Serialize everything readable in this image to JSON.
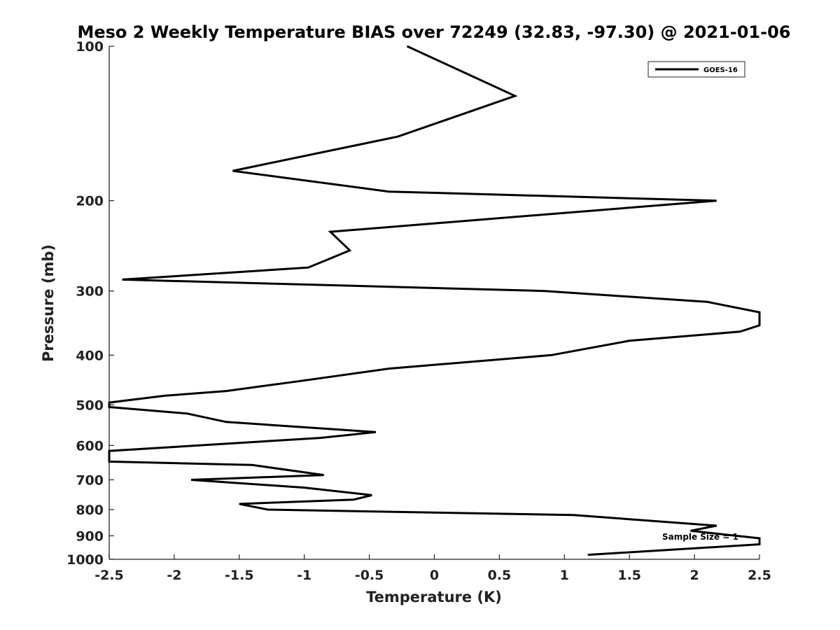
{
  "chart_data": {
    "type": "line",
    "title": "Meso 2 Weekly Temperature BIAS over 72249 (32.83, -97.30) @ 2021-01-06",
    "xlabel": "Temperature (K)",
    "ylabel": "Pressure (mb)",
    "xlim": [
      -2.5,
      2.5
    ],
    "ylim": [
      100,
      1000
    ],
    "y_scale": "log",
    "y_reversed": true,
    "x_ticks": [
      -2.5,
      -2,
      -1.5,
      -1,
      -0.5,
      0,
      0.5,
      1,
      1.5,
      2,
      2.5
    ],
    "x_tick_labels": [
      "-2.5",
      "-2",
      "-1.5",
      "-1",
      "-0.5",
      "0",
      "0.5",
      "1",
      "1.5",
      "2",
      "2.5"
    ],
    "y_ticks": [
      100,
      200,
      300,
      400,
      500,
      600,
      700,
      800,
      900,
      1000
    ],
    "y_tick_labels": [
      "100",
      "200",
      "300",
      "400",
      "500",
      "600",
      "700",
      "800",
      "900",
      "1000"
    ],
    "grid": false,
    "legend": {
      "position": "top-right",
      "entries": [
        "GOES-16"
      ]
    },
    "annotations": [
      "Sample Size = 1"
    ],
    "series": [
      {
        "name": "GOES-16",
        "color": "#000000",
        "points": [
          [
            -0.21,
            100
          ],
          [
            0.62,
            125
          ],
          [
            -0.28,
            150
          ],
          [
            -1.55,
            175
          ],
          [
            -0.35,
            192
          ],
          [
            2.17,
            200
          ],
          [
            -0.8,
            230
          ],
          [
            -0.65,
            250
          ],
          [
            -0.97,
            270
          ],
          [
            -2.4,
            285
          ],
          [
            0.85,
            300
          ],
          [
            2.1,
            315
          ],
          [
            2.5,
            330
          ],
          [
            2.5,
            350
          ],
          [
            2.35,
            360
          ],
          [
            1.5,
            375
          ],
          [
            0.9,
            400
          ],
          [
            -0.35,
            425
          ],
          [
            -1.05,
            450
          ],
          [
            -1.6,
            470
          ],
          [
            -2.07,
            480
          ],
          [
            -2.5,
            495
          ],
          [
            -2.5,
            505
          ],
          [
            -1.9,
            520
          ],
          [
            -1.6,
            540
          ],
          [
            -0.45,
            565
          ],
          [
            -0.88,
            580
          ],
          [
            -2.5,
            615
          ],
          [
            -2.5,
            645
          ],
          [
            -1.4,
            655
          ],
          [
            -0.85,
            685
          ],
          [
            -1.87,
            700
          ],
          [
            -1.0,
            725
          ],
          [
            -0.48,
            750
          ],
          [
            -0.62,
            765
          ],
          [
            -1.5,
            780
          ],
          [
            -1.28,
            800
          ],
          [
            1.07,
            820
          ],
          [
            2.17,
            860
          ],
          [
            1.97,
            880
          ],
          [
            2.5,
            910
          ],
          [
            2.5,
            935
          ],
          [
            1.18,
            980
          ]
        ]
      }
    ]
  }
}
